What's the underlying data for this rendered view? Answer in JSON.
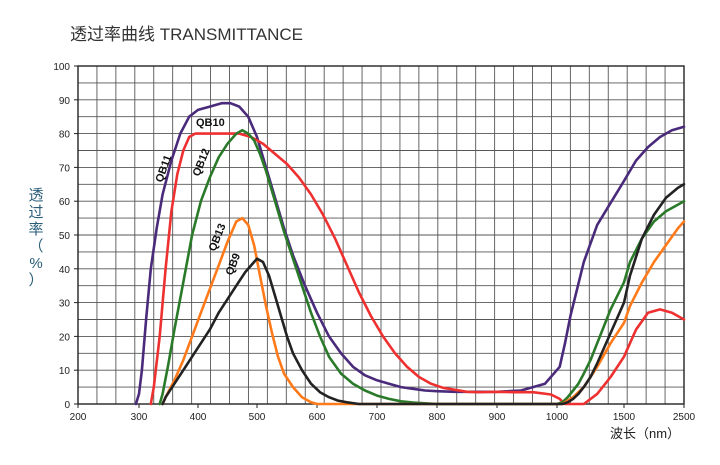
{
  "chart_data": {
    "type": "line",
    "title": "透过率曲线 TRANSMITTANCE",
    "xlabel": "波长（nm）",
    "ylabel_chars": [
      "透",
      "过",
      "率",
      "（",
      "%",
      "）"
    ],
    "x_ticks": [
      "200",
      "300",
      "400",
      "500",
      "600",
      "700",
      "800",
      "900",
      "1000",
      "1500",
      "2500"
    ],
    "y_ticks": [
      "0",
      "10",
      "20",
      "30",
      "40",
      "50",
      "60",
      "70",
      "80",
      "90",
      "100"
    ],
    "ylim": [
      0,
      100
    ],
    "grid": true,
    "series": [
      {
        "name": "QB11",
        "color": "#4a2a7a",
        "x": [
          295,
          300,
          305,
          312,
          320,
          330,
          340,
          355,
          370,
          385,
          400,
          420,
          440,
          455,
          470,
          485,
          500,
          515,
          530,
          545,
          560,
          580,
          600,
          620,
          640,
          660,
          680,
          700,
          720,
          740,
          760,
          780,
          800,
          830,
          860,
          900,
          940,
          980,
          1020,
          1060,
          1100,
          1150,
          1200,
          1300,
          1500,
          1700,
          1900,
          2100,
          2300,
          2500
        ],
        "values": [
          0,
          3,
          10,
          25,
          40,
          52,
          62,
          72,
          80,
          85,
          87,
          88,
          89,
          89,
          88,
          85,
          79,
          70,
          61,
          52,
          44,
          35,
          27,
          20,
          15,
          11,
          8.5,
          7,
          6,
          5,
          4.5,
          4,
          3.8,
          3.6,
          3.6,
          3.6,
          4,
          6,
          11,
          18,
          26,
          34,
          42,
          53,
          66,
          72,
          76,
          79,
          81,
          82
        ]
      },
      {
        "name": "QB10",
        "color": "#ee3030",
        "x": [
          320,
          325,
          335,
          345,
          355,
          365,
          375,
          385,
          395,
          410,
          430,
          450,
          470,
          490,
          510,
          530,
          550,
          570,
          590,
          610,
          630,
          650,
          670,
          690,
          710,
          730,
          750,
          770,
          790,
          810,
          830,
          850,
          870,
          900,
          930,
          960,
          990,
          1020,
          1060,
          1100,
          1150,
          1200,
          1300,
          1400,
          1500,
          1700,
          1900,
          2100,
          2300,
          2500
        ],
        "values": [
          0,
          5,
          20,
          40,
          57,
          68,
          75,
          79,
          80,
          80,
          80,
          80,
          80,
          79,
          77,
          74,
          71,
          67,
          62,
          56,
          49,
          41,
          33,
          26,
          20,
          15,
          11,
          8,
          6,
          4.8,
          4.2,
          3.6,
          3.5,
          3.6,
          3.5,
          3.5,
          2.8,
          1.5,
          0,
          0,
          0,
          0,
          3,
          8,
          14,
          22,
          27,
          28,
          27,
          25
        ]
      },
      {
        "name": "QB12",
        "color": "#2a7a2a",
        "x": [
          335,
          340,
          350,
          360,
          375,
          390,
          405,
          420,
          435,
          450,
          465,
          475,
          485,
          495,
          505,
          515,
          525,
          535,
          545,
          560,
          575,
          590,
          605,
          620,
          640,
          660,
          680,
          700,
          720,
          740,
          760,
          800,
          900,
          1000,
          1040,
          1080,
          1120,
          1160,
          1200,
          1250,
          1300,
          1400,
          1500,
          1600,
          1800,
          2000,
          2200,
          2400,
          2500
        ],
        "values": [
          0,
          3,
          12,
          22,
          36,
          50,
          60,
          67,
          73,
          77,
          80,
          81,
          80,
          78,
          74,
          69,
          63,
          57,
          51,
          43,
          35,
          27,
          20,
          14,
          9,
          6,
          4,
          2.5,
          1.5,
          0.8,
          0.4,
          0,
          0,
          0,
          0.5,
          2,
          4,
          6,
          9,
          13,
          18,
          28,
          36,
          42,
          49,
          54,
          57,
          59,
          60
        ]
      },
      {
        "name": "QB13",
        "color": "#ff7a1a",
        "x": [
          340,
          345,
          360,
          375,
          390,
          405,
          420,
          435,
          450,
          465,
          475,
          485,
          495,
          505,
          515,
          525,
          535,
          545,
          560,
          575,
          590,
          600,
          610,
          1000,
          1040,
          1080,
          1120,
          1160,
          1200,
          1250,
          1300,
          1400,
          1500,
          1600,
          1800,
          2000,
          2200,
          2400,
          2500
        ],
        "values": [
          0,
          2,
          7,
          13,
          20,
          27,
          34,
          41,
          48,
          54,
          55,
          53,
          47,
          38,
          29,
          21,
          14,
          9,
          5,
          2,
          0.5,
          0,
          0,
          0,
          0,
          1,
          2,
          3.5,
          5,
          8,
          11,
          18,
          24,
          29,
          36,
          42,
          47,
          52,
          54
        ]
      },
      {
        "name": "QB9",
        "color": "#222222",
        "x": [
          340,
          345,
          360,
          375,
          390,
          405,
          420,
          435,
          450,
          465,
          480,
          490,
          500,
          510,
          520,
          530,
          540,
          550,
          560,
          575,
          590,
          605,
          620,
          635,
          650,
          670,
          690,
          1000,
          1040,
          1080,
          1120,
          1160,
          1200,
          1250,
          1300,
          1400,
          1500,
          1600,
          1800,
          2000,
          2200,
          2400,
          2500
        ],
        "values": [
          0,
          2,
          6,
          10,
          14,
          18,
          22,
          27,
          31,
          35,
          39,
          41,
          43,
          42,
          38,
          32,
          26,
          20,
          15,
          10,
          6,
          3.5,
          2,
          1,
          0.5,
          0,
          0,
          0,
          0,
          0.5,
          1.5,
          3,
          5,
          8,
          12,
          21,
          30,
          38,
          49,
          56,
          61,
          64,
          65
        ]
      }
    ],
    "annotations": [
      {
        "text": "QB11",
        "series": "QB11"
      },
      {
        "text": "QB10",
        "series": "QB10"
      },
      {
        "text": "QB12",
        "series": "QB12"
      },
      {
        "text": "QB13",
        "series": "QB13"
      },
      {
        "text": "QB9",
        "series": "QB9"
      }
    ]
  },
  "page_colors": {
    "title_text": "#333333",
    "ylabel_text": "#2a5d7a",
    "xlabel_text": "#222222",
    "grid": "#555555",
    "axis": "#222222",
    "tick_text": "#222222",
    "annotation_text": "#111111"
  }
}
